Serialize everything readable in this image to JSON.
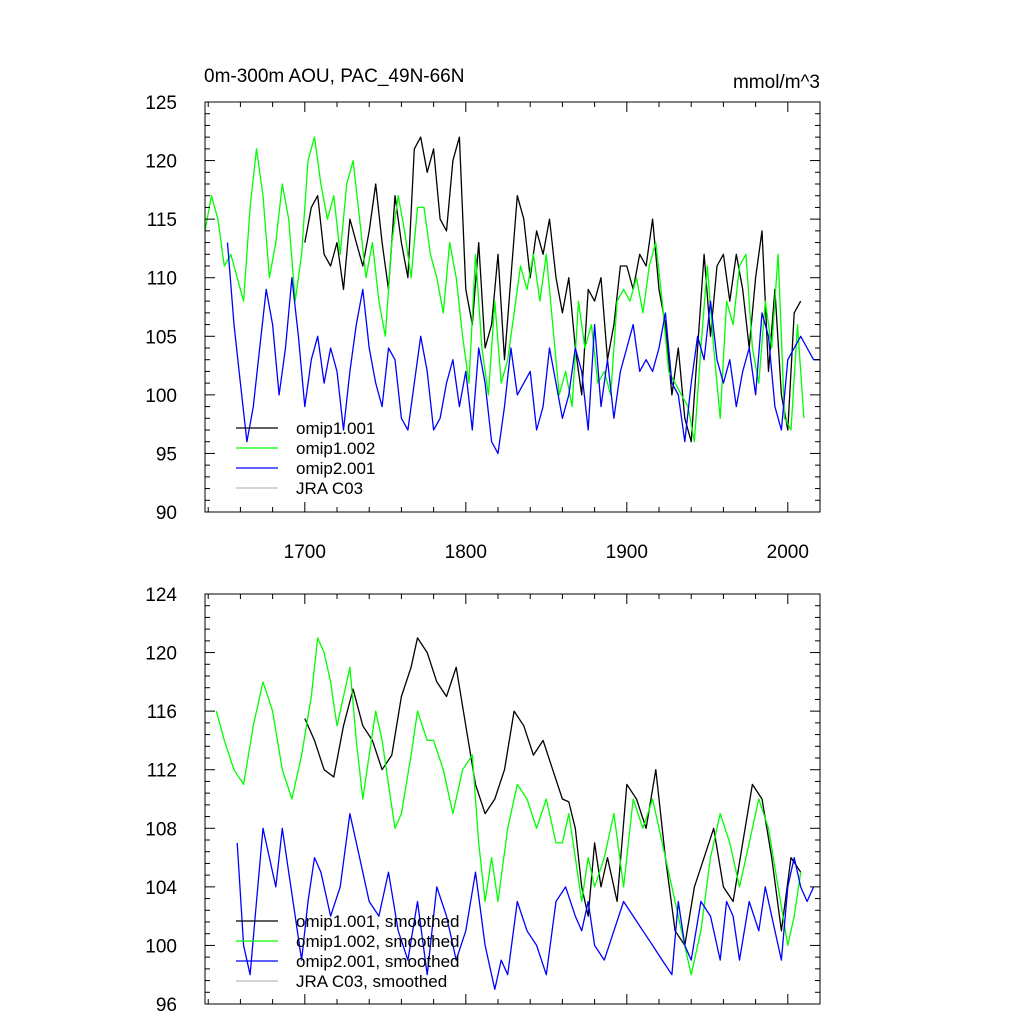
{
  "chart_data": [
    {
      "type": "line",
      "title": "0m-300m AOU, PAC_49N-66N",
      "units": "mmol/m^3",
      "xlim": [
        1638,
        2020
      ],
      "ylim": [
        90,
        125
      ],
      "xticks": [
        1700,
        1800,
        1900,
        2000
      ],
      "yticks": [
        90,
        95,
        100,
        105,
        110,
        115,
        120,
        125
      ],
      "legend_position": "bottom-left",
      "series": [
        {
          "name": "omip1.001",
          "color": "#000000",
          "x": [
            1700,
            1704,
            1708,
            1712,
            1716,
            1720,
            1724,
            1728,
            1732,
            1736,
            1740,
            1744,
            1748,
            1752,
            1756,
            1760,
            1764,
            1768,
            1772,
            1776,
            1780,
            1784,
            1788,
            1792,
            1796,
            1800,
            1804,
            1808,
            1812,
            1816,
            1820,
            1824,
            1828,
            1832,
            1836,
            1840,
            1844,
            1848,
            1852,
            1856,
            1860,
            1864,
            1868,
            1872,
            1876,
            1880,
            1884,
            1888,
            1892,
            1896,
            1900,
            1904,
            1908,
            1912,
            1916,
            1920,
            1924,
            1928,
            1932,
            1936,
            1940,
            1944,
            1948,
            1952,
            1956,
            1960,
            1964,
            1968,
            1972,
            1976,
            1980,
            1984,
            1988,
            1992,
            1996,
            2000,
            2004,
            2008
          ],
          "y": [
            113,
            116,
            117,
            112,
            111,
            113,
            109,
            115,
            113,
            111,
            114,
            118,
            113,
            109,
            117,
            113,
            110,
            121,
            122,
            119,
            121,
            115,
            114,
            120,
            122,
            109,
            106,
            113,
            104,
            106,
            112,
            103,
            110,
            117,
            115,
            110,
            114,
            112,
            115,
            110,
            107,
            110,
            104,
            100,
            109,
            108,
            110,
            103,
            106,
            111,
            111,
            109,
            112,
            111,
            115,
            109,
            106,
            100,
            104,
            98,
            96,
            104,
            112,
            105,
            111,
            112,
            108,
            112,
            109,
            104,
            110,
            114,
            102,
            109,
            100,
            97,
            107,
            108
          ]
        },
        {
          "name": "omip1.002",
          "color": "#00ff00",
          "x": [
            1638,
            1642,
            1646,
            1650,
            1654,
            1658,
            1662,
            1666,
            1670,
            1674,
            1678,
            1682,
            1686,
            1690,
            1694,
            1698,
            1702,
            1706,
            1710,
            1714,
            1718,
            1722,
            1726,
            1730,
            1734,
            1738,
            1742,
            1746,
            1750,
            1754,
            1758,
            1762,
            1766,
            1770,
            1774,
            1778,
            1782,
            1786,
            1790,
            1794,
            1798,
            1802,
            1806,
            1810,
            1814,
            1818,
            1822,
            1826,
            1830,
            1834,
            1838,
            1842,
            1846,
            1850,
            1854,
            1858,
            1862,
            1866,
            1870,
            1874,
            1878,
            1882,
            1886,
            1890,
            1894,
            1898,
            1902,
            1906,
            1910,
            1914,
            1918,
            1922,
            1926,
            1930,
            1934,
            1938,
            1942,
            1946,
            1950,
            1954,
            1958,
            1962,
            1966,
            1970,
            1974,
            1978,
            1982,
            1986,
            1990,
            1994,
            1998,
            2002,
            2006,
            2010
          ],
          "y": [
            114,
            117,
            115,
            111,
            112,
            110,
            108,
            116,
            121,
            117,
            110,
            113,
            118,
            115,
            108,
            112,
            120,
            122,
            118,
            115,
            117,
            112,
            118,
            120,
            115,
            110,
            113,
            108,
            105,
            113,
            117,
            114,
            110,
            116,
            116,
            112,
            110,
            107,
            113,
            110,
            105,
            101,
            112,
            104,
            100,
            108,
            101,
            103,
            107,
            111,
            109,
            112,
            108,
            112,
            106,
            100,
            102,
            99,
            108,
            104,
            106,
            101,
            102,
            100,
            108,
            109,
            108,
            110,
            107,
            111,
            113,
            108,
            102,
            101,
            100,
            99,
            96,
            104,
            111,
            104,
            98,
            108,
            106,
            111,
            112,
            104,
            101,
            108,
            104,
            112,
            98,
            97,
            106,
            98
          ]
        },
        {
          "name": "omip2.001",
          "color": "#0000ff",
          "x": [
            1652,
            1656,
            1660,
            1664,
            1668,
            1672,
            1676,
            1680,
            1684,
            1688,
            1692,
            1696,
            1700,
            1704,
            1708,
            1712,
            1716,
            1720,
            1724,
            1728,
            1732,
            1736,
            1740,
            1744,
            1748,
            1752,
            1756,
            1760,
            1764,
            1768,
            1772,
            1776,
            1780,
            1784,
            1788,
            1792,
            1796,
            1800,
            1804,
            1808,
            1812,
            1816,
            1820,
            1824,
            1828,
            1832,
            1836,
            1840,
            1844,
            1848,
            1852,
            1856,
            1860,
            1864,
            1868,
            1872,
            1876,
            1880,
            1884,
            1888,
            1892,
            1896,
            1900,
            1904,
            1908,
            1912,
            1916,
            1920,
            1924,
            1928,
            1932,
            1936,
            1940,
            1944,
            1948,
            1952,
            1956,
            1960,
            1964,
            1968,
            1972,
            1976,
            1980,
            1984,
            1988,
            1992,
            1996,
            2000,
            2004,
            2008,
            2012,
            2016,
            2020
          ],
          "y": [
            113,
            106,
            101,
            96,
            99,
            104,
            109,
            106,
            100,
            104,
            110,
            105,
            99,
            103,
            105,
            101,
            104,
            102,
            97,
            102,
            106,
            109,
            104,
            101,
            99,
            104,
            103,
            98,
            97,
            101,
            105,
            102,
            97,
            98,
            101,
            103,
            99,
            102,
            97,
            104,
            101,
            96,
            95,
            99,
            104,
            100,
            101,
            102,
            97,
            99,
            104,
            101,
            98,
            100,
            104,
            102,
            97,
            106,
            99,
            103,
            98,
            102,
            104,
            106,
            102,
            103,
            102,
            104,
            107,
            101,
            100,
            96,
            101,
            105,
            103,
            108,
            103,
            101,
            103,
            99,
            102,
            104,
            100,
            107,
            105,
            99,
            97,
            103,
            104,
            105,
            104,
            103,
            103
          ]
        },
        {
          "name": "JRA C03",
          "color": "#bbbbbb",
          "x": [],
          "y": []
        }
      ]
    },
    {
      "type": "line",
      "title": "",
      "units": "",
      "xlim": [
        1638,
        2020
      ],
      "ylim": [
        96,
        124
      ],
      "xticks": [
        1700,
        1800,
        1900,
        2000
      ],
      "yticks": [
        96,
        100,
        104,
        108,
        112,
        116,
        120,
        124
      ],
      "legend_position": "bottom-left",
      "series": [
        {
          "name": "omip1.001, smoothed",
          "color": "#000000",
          "x": [
            1700,
            1706,
            1712,
            1718,
            1724,
            1730,
            1736,
            1742,
            1748,
            1754,
            1760,
            1766,
            1770,
            1776,
            1782,
            1788,
            1794,
            1800,
            1806,
            1812,
            1818,
            1824,
            1830,
            1836,
            1842,
            1848,
            1854,
            1860,
            1864,
            1868,
            1872,
            1876,
            1880,
            1884,
            1888,
            1894,
            1900,
            1906,
            1912,
            1918,
            1924,
            1930,
            1936,
            1942,
            1948,
            1954,
            1960,
            1966,
            1972,
            1978,
            1984,
            1990,
            1996,
            2002,
            2008
          ],
          "y": [
            115.5,
            114,
            112,
            111.5,
            115,
            117.5,
            115,
            114,
            112,
            113,
            117,
            119,
            121,
            120,
            118,
            117,
            119,
            115,
            111,
            109,
            110,
            112,
            116,
            115,
            113,
            114,
            112,
            110,
            109.8,
            108,
            104,
            102,
            107,
            104,
            106,
            103,
            111,
            110,
            108,
            112,
            106,
            101,
            100,
            104,
            106,
            108,
            104,
            103,
            107,
            111,
            110,
            106,
            101,
            106,
            105
          ]
        },
        {
          "name": "omip1.002, smoothed",
          "color": "#00ff00",
          "x": [
            1645,
            1650,
            1656,
            1662,
            1668,
            1674,
            1680,
            1686,
            1692,
            1698,
            1704,
            1708,
            1712,
            1716,
            1720,
            1724,
            1728,
            1732,
            1736,
            1740,
            1744,
            1748,
            1752,
            1756,
            1760,
            1766,
            1770,
            1776,
            1780,
            1786,
            1792,
            1798,
            1804,
            1808,
            1812,
            1816,
            1820,
            1826,
            1832,
            1838,
            1844,
            1850,
            1856,
            1860,
            1864,
            1868,
            1872,
            1876,
            1880,
            1886,
            1892,
            1898,
            1904,
            1910,
            1916,
            1922,
            1928,
            1934,
            1940,
            1946,
            1952,
            1958,
            1964,
            1970,
            1976,
            1982,
            1988,
            1994,
            2000,
            2004,
            2008
          ],
          "y": [
            116,
            114,
            112,
            111,
            115,
            118,
            116,
            112,
            110,
            113,
            117,
            121,
            120,
            118,
            115,
            117,
            119,
            114,
            110,
            113,
            116,
            114,
            111,
            108,
            109,
            113,
            116,
            114,
            114,
            112,
            109,
            112,
            113,
            107,
            103,
            106,
            103,
            108,
            111,
            110,
            108,
            110,
            107,
            107,
            109,
            106,
            103,
            106,
            104,
            106,
            109,
            104,
            110,
            108,
            110,
            107,
            104,
            101,
            98,
            101,
            106,
            109,
            107,
            104,
            107,
            110,
            108,
            104,
            100,
            102,
            105
          ]
        },
        {
          "name": "omip2.001, smoothed",
          "color": "#0000ff",
          "x": [
            1658,
            1662,
            1666,
            1670,
            1674,
            1678,
            1682,
            1686,
            1690,
            1694,
            1698,
            1702,
            1706,
            1710,
            1716,
            1722,
            1728,
            1734,
            1740,
            1746,
            1752,
            1758,
            1764,
            1770,
            1776,
            1782,
            1788,
            1794,
            1800,
            1806,
            1812,
            1818,
            1822,
            1826,
            1832,
            1838,
            1844,
            1850,
            1856,
            1862,
            1868,
            1872,
            1876,
            1880,
            1886,
            1892,
            1898,
            1904,
            1910,
            1916,
            1922,
            1928,
            1932,
            1936,
            1940,
            1946,
            1952,
            1958,
            1962,
            1966,
            1970,
            1976,
            1982,
            1986,
            1990,
            1996,
            2000,
            2004,
            2008,
            2012,
            2016
          ],
          "y": [
            107,
            100,
            98,
            103,
            108,
            106,
            104,
            108,
            105,
            102,
            99,
            103,
            106,
            105,
            102,
            104,
            109,
            106,
            103,
            102,
            105,
            101,
            99,
            103,
            98,
            104,
            102,
            99,
            101,
            105,
            100,
            97,
            99,
            98,
            103,
            101,
            100,
            98,
            103,
            104,
            102,
            101,
            103,
            100,
            99,
            101,
            103,
            102,
            101,
            100,
            99,
            98,
            103,
            100,
            99,
            103,
            102,
            99,
            103,
            102,
            99,
            103,
            101,
            104,
            102,
            99,
            104,
            106,
            104,
            103,
            104
          ]
        },
        {
          "name": "JRA C03, smoothed",
          "color": "#bbbbbb",
          "x": [],
          "y": []
        }
      ]
    }
  ]
}
